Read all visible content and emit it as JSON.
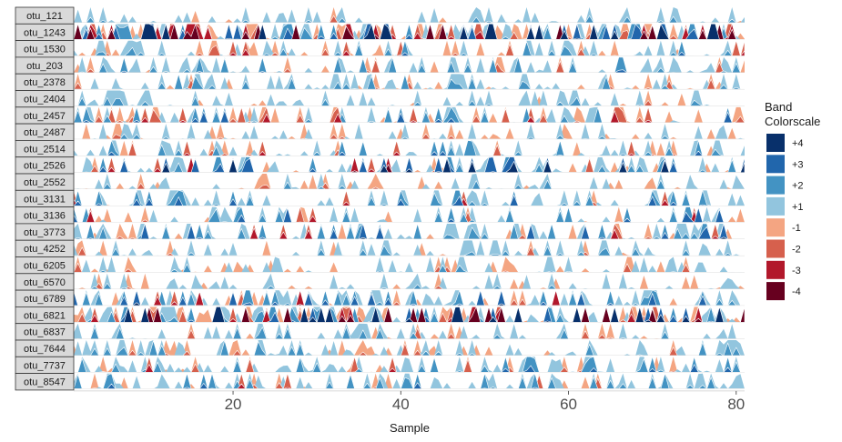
{
  "chart_data": {
    "type": "horizon",
    "xlabel": "Sample",
    "xlim": [
      1,
      81
    ],
    "x_ticks": [
      20,
      40,
      60,
      80
    ],
    "panels": [
      {
        "label": "otu_121",
        "density": 0.35,
        "level": 1.6,
        "neg": 0.15
      },
      {
        "label": "otu_1243",
        "density": 0.9,
        "level": 5.0,
        "neg": 0.45
      },
      {
        "label": "otu_1530",
        "density": 0.55,
        "level": 2.6,
        "neg": 0.5
      },
      {
        "label": "otu_203",
        "density": 0.45,
        "level": 2.2,
        "neg": 0.15
      },
      {
        "label": "otu_2378",
        "density": 0.5,
        "level": 2.0,
        "neg": 0.25
      },
      {
        "label": "otu_2404",
        "density": 0.4,
        "level": 1.6,
        "neg": 0.2
      },
      {
        "label": "otu_2457",
        "density": 0.55,
        "level": 2.8,
        "neg": 0.45
      },
      {
        "label": "otu_2487",
        "density": 0.4,
        "level": 1.4,
        "neg": 0.5
      },
      {
        "label": "otu_2514",
        "density": 0.45,
        "level": 2.4,
        "neg": 0.25
      },
      {
        "label": "otu_2526",
        "density": 0.55,
        "level": 4.0,
        "neg": 0.3
      },
      {
        "label": "otu_2552",
        "density": 0.4,
        "level": 1.6,
        "neg": 0.35
      },
      {
        "label": "otu_3131",
        "density": 0.35,
        "level": 2.8,
        "neg": 0.15
      },
      {
        "label": "otu_3136",
        "density": 0.4,
        "level": 3.0,
        "neg": 0.2
      },
      {
        "label": "otu_3773",
        "density": 0.5,
        "level": 3.2,
        "neg": 0.25
      },
      {
        "label": "otu_4252",
        "density": 0.4,
        "level": 1.8,
        "neg": 0.3
      },
      {
        "label": "otu_6205",
        "density": 0.4,
        "level": 1.6,
        "neg": 0.4
      },
      {
        "label": "otu_6570",
        "density": 0.35,
        "level": 1.4,
        "neg": 0.25
      },
      {
        "label": "otu_6789",
        "density": 0.5,
        "level": 3.2,
        "neg": 0.2
      },
      {
        "label": "otu_6821",
        "density": 0.92,
        "level": 5.0,
        "neg": 0.5
      },
      {
        "label": "otu_6837",
        "density": 0.4,
        "level": 1.8,
        "neg": 0.2
      },
      {
        "label": "otu_7644",
        "density": 0.45,
        "level": 2.0,
        "neg": 0.3
      },
      {
        "label": "otu_7737",
        "density": 0.5,
        "level": 2.6,
        "neg": 0.25
      },
      {
        "label": "otu_8547",
        "density": 0.5,
        "level": 2.4,
        "neg": 0.2
      }
    ],
    "legend": {
      "title_line1": "Band",
      "title_line2": "Colorscale",
      "items": [
        {
          "label": "+4",
          "color": "#08306b"
        },
        {
          "label": "+3",
          "color": "#2166ac"
        },
        {
          "label": "+2",
          "color": "#4393c3"
        },
        {
          "label": "+1",
          "color": "#92c5de"
        },
        {
          "label": "-1",
          "color": "#f4a582"
        },
        {
          "label": "-2",
          "color": "#d6604d"
        },
        {
          "label": "-3",
          "color": "#b2182b"
        },
        {
          "label": "-4",
          "color": "#67001f"
        }
      ]
    },
    "colors": {
      "pos": [
        "#92c5de",
        "#4393c3",
        "#2166ac",
        "#08306b"
      ],
      "neg": [
        "#f4a582",
        "#d6604d",
        "#b2182b",
        "#67001f"
      ],
      "background": "#ffffff",
      "strip": "#d9d9d9"
    }
  }
}
